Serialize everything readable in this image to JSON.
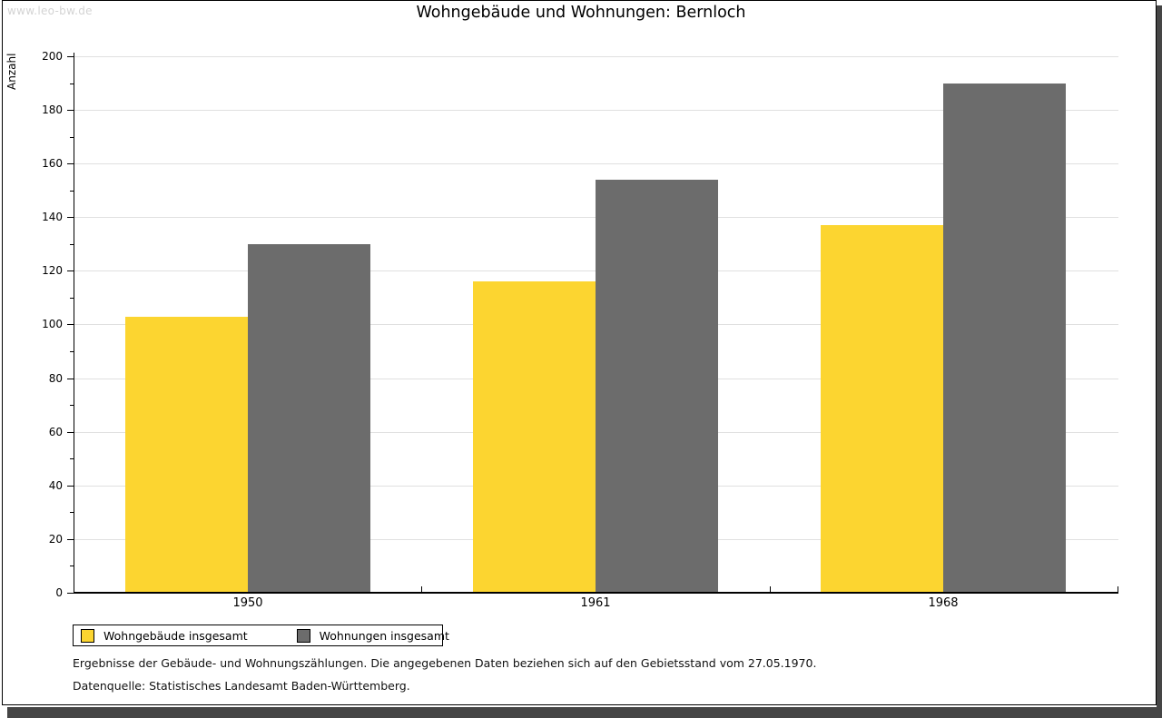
{
  "watermark": "www.leo-bw.de",
  "header": {
    "title": "Wohngebäude und Wohnungen: Bernloch"
  },
  "chart_data": {
    "type": "bar",
    "title": "Wohngebäude und Wohnungen: Bernloch",
    "xlabel": "",
    "ylabel": "Anzahl",
    "categories": [
      "1950",
      "1961",
      "1968"
    ],
    "series": [
      {
        "name": "Wohngebäude insgesamt",
        "color": "#FCD530",
        "values": [
          103,
          116,
          137
        ]
      },
      {
        "name": "Wohnungen insgesamt",
        "color": "#6C6C6C",
        "values": [
          130,
          154,
          190
        ]
      }
    ],
    "ylim": [
      0,
      200
    ],
    "ytick_major": 20,
    "ytick_minor": 10,
    "grid": true,
    "gridline_color": "#e0e0e0",
    "legend_position": "bottom-left"
  },
  "notes": {
    "line1": "Ergebnisse der Gebäude- und Wohnungszählungen. Die angegebenen Daten beziehen sich auf den Gebietsstand vom 27.05.1970.",
    "line2": "Datenquelle: Statistisches Landesamt Baden-Württemberg."
  }
}
